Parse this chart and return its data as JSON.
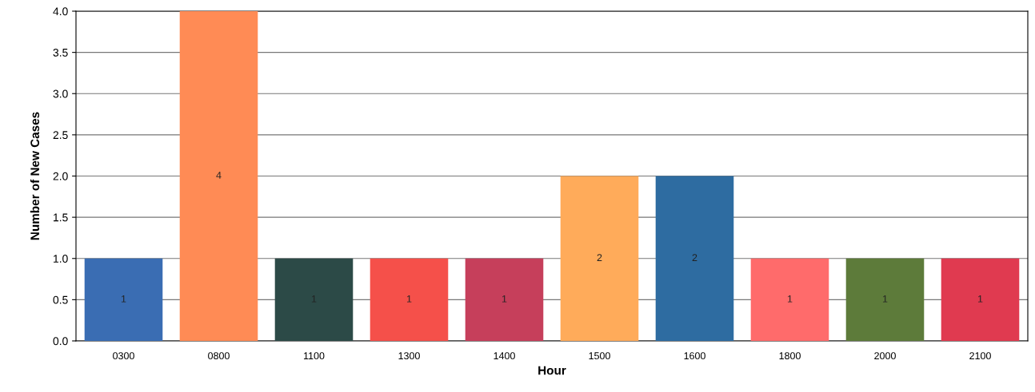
{
  "chart_data": {
    "type": "bar",
    "xlabel": "Hour",
    "ylabel": "Number of New Cases",
    "categories": [
      "0300",
      "0800",
      "1100",
      "1300",
      "1400",
      "1500",
      "1600",
      "1800",
      "2000",
      "2100"
    ],
    "values": [
      1,
      4,
      1,
      1,
      1,
      2,
      2,
      1,
      1,
      1
    ],
    "colors": [
      "#3a6db3",
      "#ff8b55",
      "#2c4a47",
      "#f5504a",
      "#c63f5b",
      "#ffab5a",
      "#2e6ca1",
      "#ff6b6b",
      "#5d7b3a",
      "#e03a50"
    ],
    "ylim": [
      0,
      4
    ],
    "yticks": [
      {
        "value": 0,
        "label": "0.0"
      },
      {
        "value": 0.5,
        "label": "0.5"
      },
      {
        "value": 1,
        "label": "1.0"
      },
      {
        "value": 1.5,
        "label": "1.5"
      },
      {
        "value": 2,
        "label": "2.0"
      },
      {
        "value": 2.5,
        "label": "2.5"
      },
      {
        "value": 3,
        "label": "3.0"
      },
      {
        "value": 3.5,
        "label": "3.5"
      },
      {
        "value": 4,
        "label": "4.0"
      }
    ],
    "grid": "y",
    "data_labels": true
  }
}
